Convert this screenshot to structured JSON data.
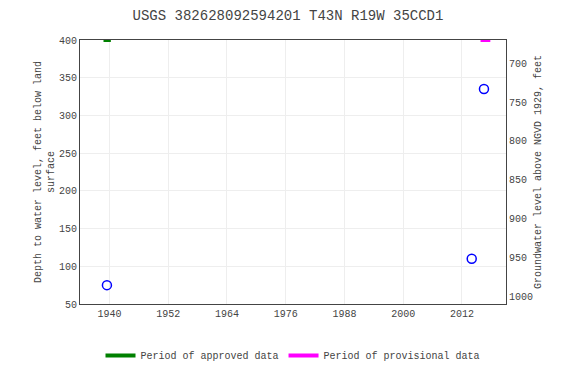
{
  "chart_data": {
    "type": "scatter",
    "title": "USGS 382628092594201 T43N R19W 35CCD1",
    "y_label": "Depth to water level, feet below land\nsurface",
    "y2_label": "Groundwater level above NGVD 1929, feet",
    "xlim": [
      1934,
      2021
    ],
    "xticks": [
      1940,
      1952,
      1964,
      1976,
      1988,
      2000,
      2012
    ],
    "ylim": [
      50,
      400
    ],
    "yticks": [
      50,
      100,
      150,
      200,
      250,
      300,
      350,
      400
    ],
    "y2lim": [
      1010,
      670
    ],
    "y2ticks": [
      1000,
      950,
      900,
      850,
      800,
      750,
      700
    ],
    "grid": true,
    "legend": "bottom",
    "series": [
      {
        "type": "scatter",
        "marker": "circle-open",
        "color": "#0000ff",
        "x": [
          1939.5,
          2014.0,
          2016.5
        ],
        "values": [
          75,
          110,
          335
        ]
      },
      {
        "type": "line",
        "name": "Period of approved data",
        "color": "#008000",
        "x": [
          1938.8,
          1940.3
        ],
        "values": [
          400,
          400
        ]
      },
      {
        "type": "line",
        "name": "Period of provisional data",
        "color": "#ff00ff",
        "x": [
          2015.8,
          2017.8
        ],
        "values": [
          400,
          400
        ]
      }
    ]
  }
}
